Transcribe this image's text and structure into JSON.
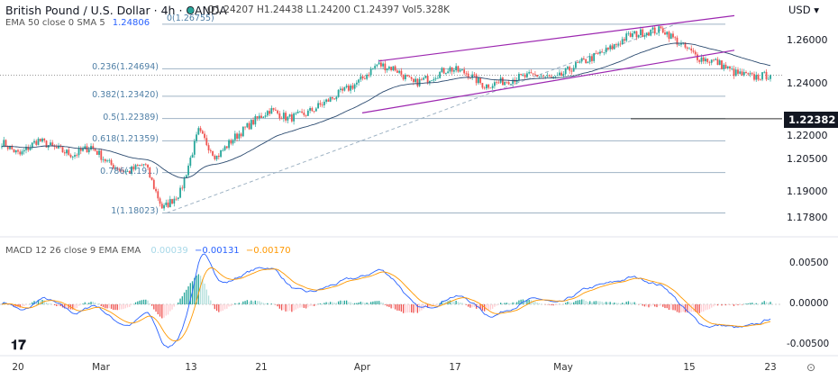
{
  "header": {
    "symbol_title": "British Pound / U.S. Dollar · 4h · OANDA",
    "ohlc": "O1.24207 H1.24438 L1.24200 C1.24397 Vol5.328K",
    "ema_label": "EMA 50 close 0 SMA 5",
    "ema_value": "1.24806",
    "currency_menu": "USD ▾"
  },
  "macd_legend": {
    "label": "MACD 12 26 close 9 EMA EMA",
    "hist": "0.00039",
    "macd": "−0.00131",
    "signal": "−0.00170"
  },
  "colors": {
    "up": "#26a69a",
    "down": "#ef5350",
    "ema": "#2962ff",
    "macd": "#2962ff",
    "signal": "#ff9800",
    "channel": "#9c27b0",
    "fib": "#4f7fa6"
  },
  "chart_data": [
    {
      "type": "candlestick",
      "title": "British Pound / U.S. Dollar · 4h · OANDA",
      "y_ticks": [
        "1.26000",
        "1.24000",
        "1.22000",
        "1.20500",
        "1.19000",
        "1.17800"
      ],
      "x_ticks": [
        "20",
        "Mar",
        "13",
        "21",
        "Apr",
        "17",
        "May",
        "15",
        "23"
      ],
      "ylim": [
        1.176,
        1.2735
      ],
      "sampled_closes": [
        1.213,
        1.207,
        1.214,
        1.21,
        1.207,
        1.211,
        1.203,
        1.199,
        1.203,
        1.182,
        1.19,
        1.218,
        1.206,
        1.215,
        1.222,
        1.228,
        1.224,
        1.226,
        1.231,
        1.236,
        1.241,
        1.249,
        1.247,
        1.24,
        1.243,
        1.247,
        1.245,
        1.239,
        1.241,
        1.243,
        1.244,
        1.242,
        1.248,
        1.252,
        1.256,
        1.262,
        1.264,
        1.265,
        1.258,
        1.252,
        1.25,
        1.245,
        1.243,
        1.244
      ],
      "last_close": 1.24397,
      "ema_period": 50,
      "highlight_level": {
        "label": "1.22382",
        "value": 1.22382
      },
      "fib_levels": [
        {
          "label": "0(1.26755)",
          "value": 1.26755
        },
        {
          "label": "0.236(1.24694)",
          "value": 1.24694
        },
        {
          "label": "0.382(1.23420)",
          "value": 1.2342
        },
        {
          "label": "0.5(1.22389)",
          "value": 1.22389
        },
        {
          "label": "0.618(1.21359)",
          "value": 1.21359
        },
        {
          "label": "0.786(1.19...)",
          "value": 1.1989
        },
        {
          "label": "1(1.18023)",
          "value": 1.18023
        }
      ],
      "channel": {
        "upper": [
          1.2505,
          1.2715
        ],
        "lower": [
          1.2265,
          1.2555
        ]
      }
    },
    {
      "type": "macd",
      "y_ticks": [
        "0.00500",
        "0.00000",
        "-0.00500"
      ],
      "fast": 12,
      "slow": 26,
      "signal": 9
    }
  ]
}
